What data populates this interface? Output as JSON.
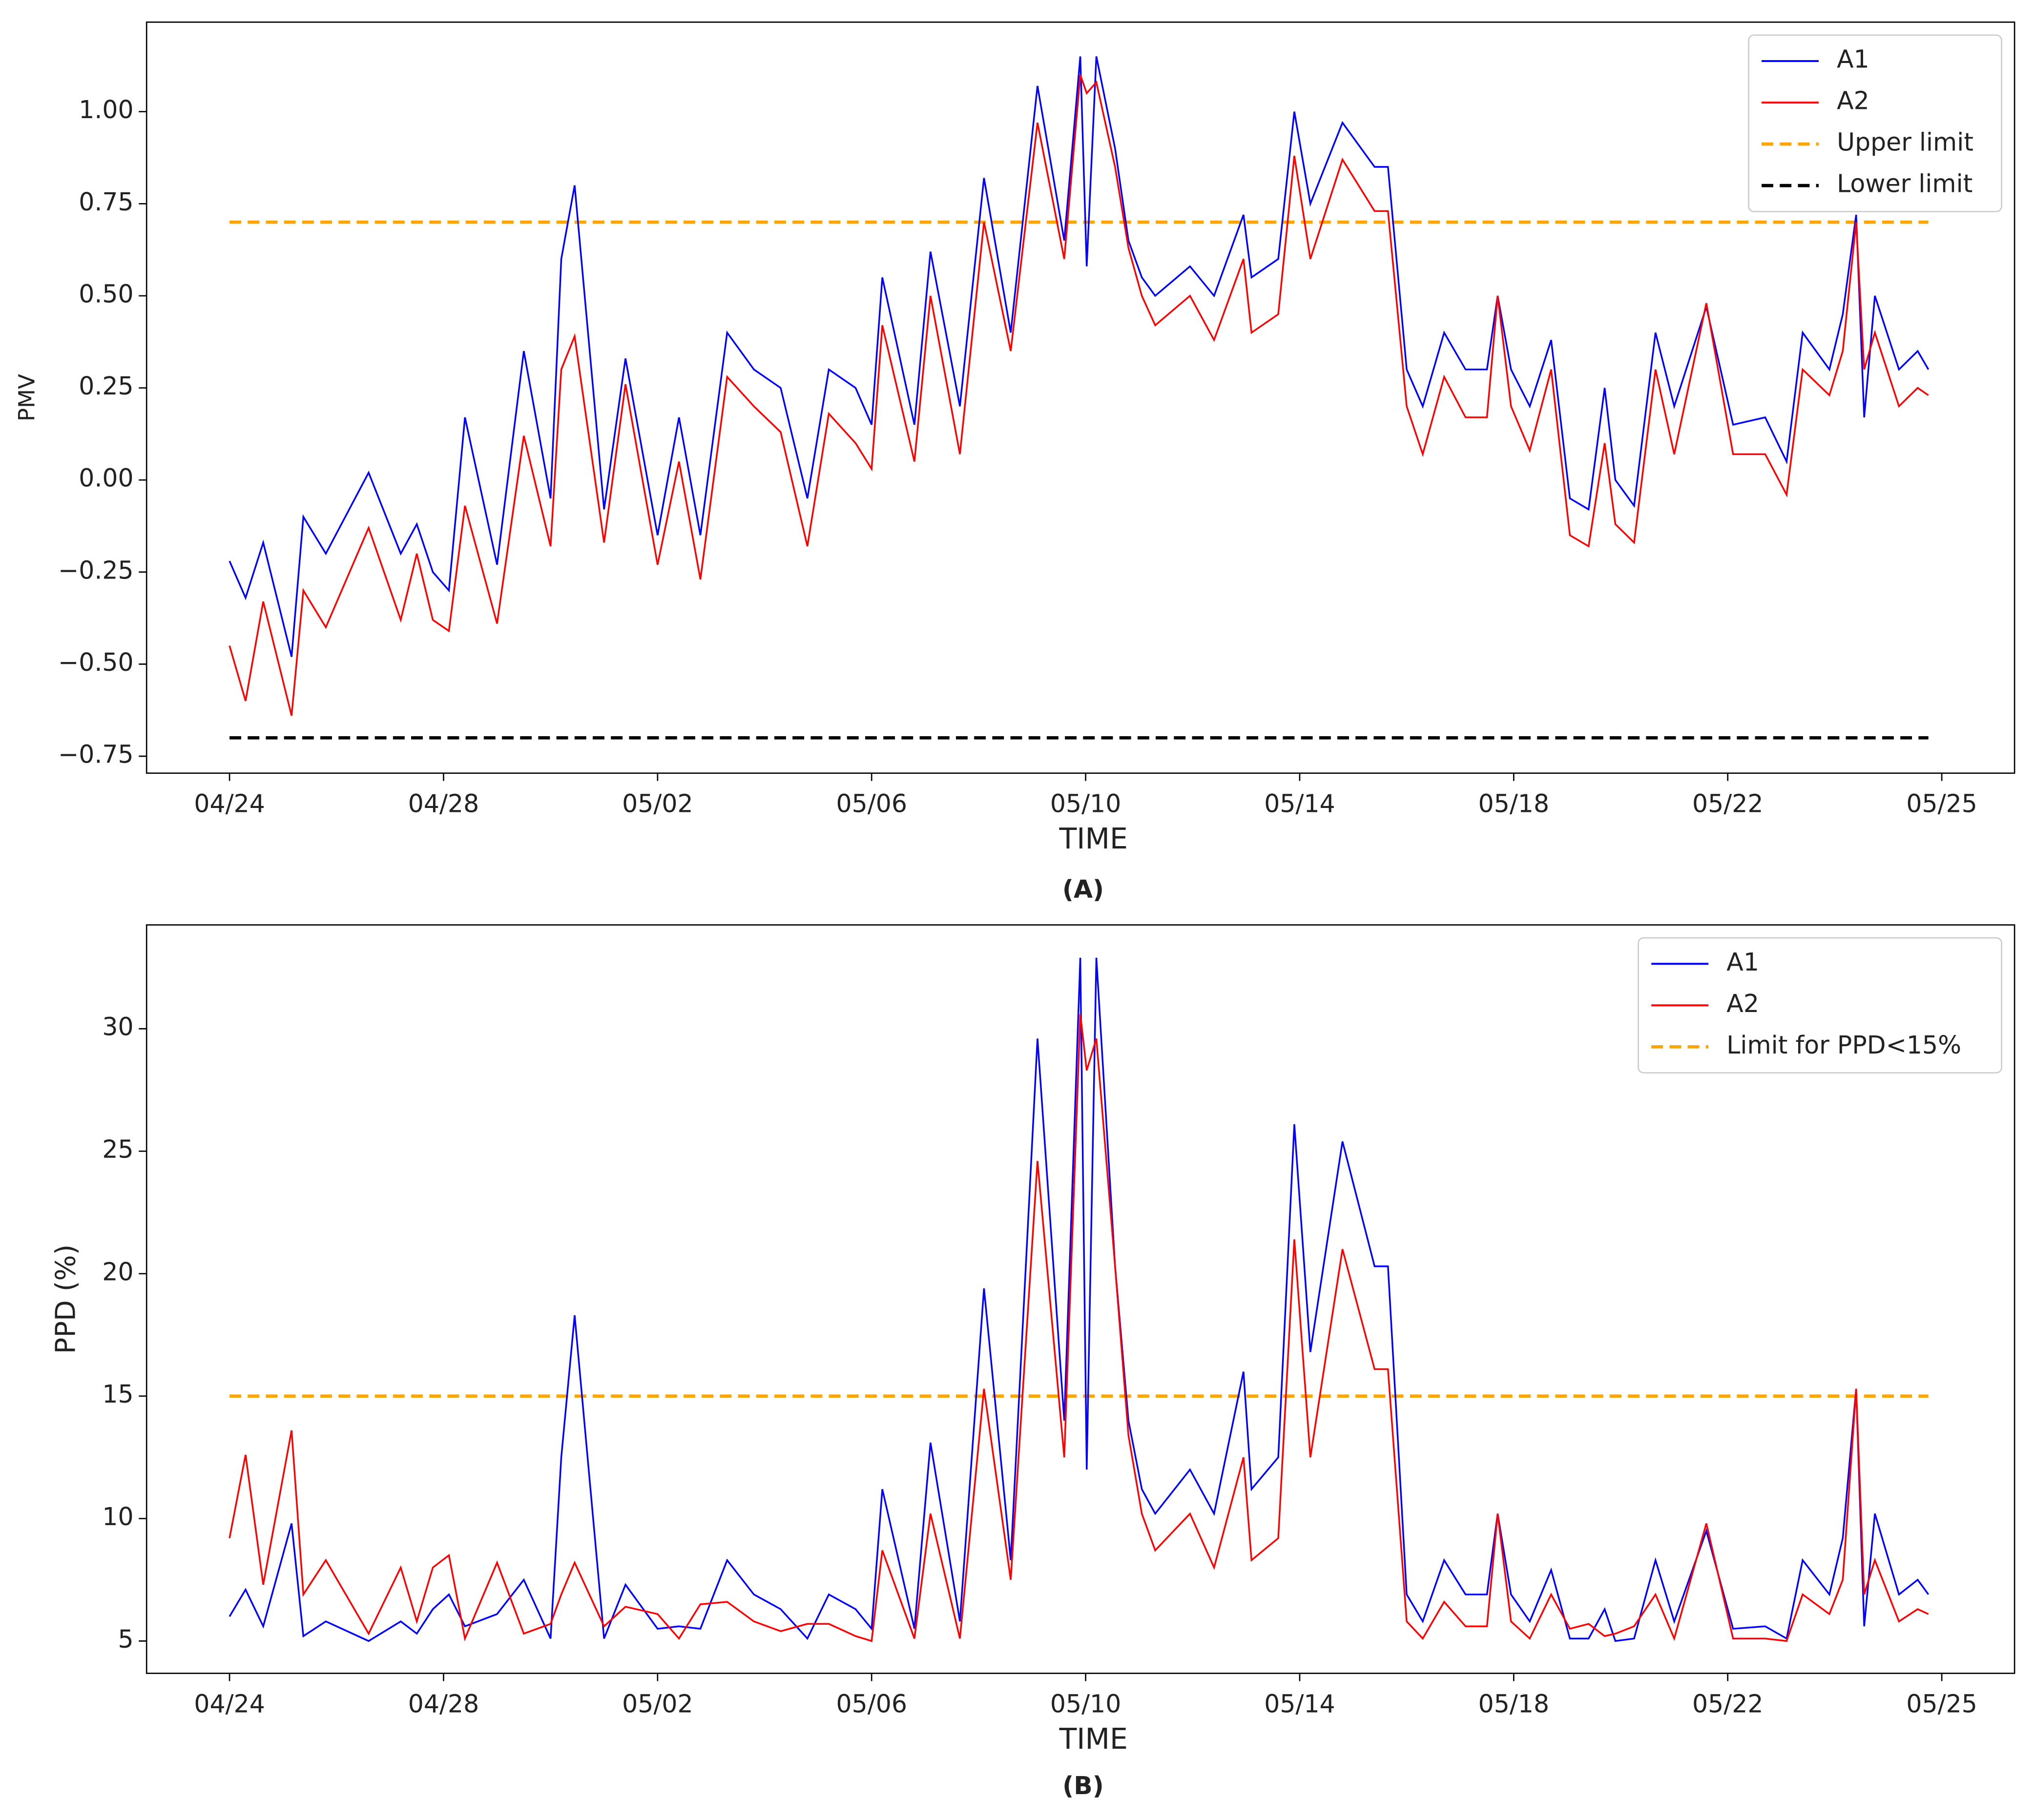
{
  "chart_data": [
    {
      "type": "line",
      "caption": "(A)",
      "xlabel": "TIME",
      "ylabel": "PMV",
      "x": [
        0,
        0.3,
        0.63,
        1.16,
        1.38,
        1.8,
        2.6,
        3.2,
        3.5,
        3.8,
        4.1,
        4.4,
        5.0,
        5.5,
        6.0,
        6.2,
        6.45,
        7.0,
        7.4,
        8.0,
        8.4,
        8.8,
        9.3,
        9.8,
        10.3,
        10.8,
        11.2,
        11.7,
        12.0,
        12.2,
        12.8,
        13.1,
        13.65,
        14.1,
        14.6,
        15.1,
        15.6,
        15.9,
        16.02,
        16.2,
        16.55,
        16.8,
        17.05,
        17.3,
        17.95,
        18.4,
        18.95,
        19.1,
        19.6,
        19.9,
        20.2,
        20.8,
        21.4,
        21.65,
        22.0,
        22.3,
        22.7,
        23.1,
        23.5,
        23.7,
        23.95,
        24.3,
        24.7,
        25.05,
        25.4,
        25.7,
        25.9,
        26.25,
        26.65,
        27.0,
        27.6,
        28.1,
        28.7,
        29.1,
        29.4,
        29.9,
        30.15,
        30.4,
        30.55,
        30.75,
        31.2,
        31.55,
        31.75
      ],
      "series": [
        {
          "name": "A1",
          "color": "#0000ff",
          "values": [
            -0.22,
            -0.32,
            -0.17,
            -0.48,
            -0.1,
            -0.2,
            0.02,
            -0.2,
            -0.12,
            -0.25,
            -0.3,
            0.17,
            -0.23,
            0.35,
            -0.05,
            0.6,
            0.8,
            -0.08,
            0.33,
            -0.15,
            0.17,
            -0.15,
            0.4,
            0.3,
            0.25,
            -0.05,
            0.3,
            0.25,
            0.15,
            0.55,
            0.15,
            0.62,
            0.2,
            0.82,
            0.4,
            1.07,
            0.65,
            1.15,
            0.58,
            1.15,
            0.9,
            0.65,
            0.55,
            0.5,
            0.58,
            0.5,
            0.72,
            0.55,
            0.6,
            1.0,
            0.75,
            0.97,
            0.85,
            0.85,
            0.3,
            0.2,
            0.4,
            0.3,
            0.3,
            0.5,
            0.3,
            0.2,
            0.38,
            -0.05,
            -0.08,
            0.25,
            0.0,
            -0.07,
            0.4,
            0.2,
            0.47,
            0.15,
            0.17,
            0.05,
            0.4,
            0.3,
            0.45,
            0.72,
            0.17,
            0.5,
            0.3,
            0.35,
            0.3
          ]
        },
        {
          "name": "A2",
          "color": "#ff0000",
          "values": [
            -0.45,
            -0.6,
            -0.33,
            -0.64,
            -0.3,
            -0.4,
            -0.13,
            -0.38,
            -0.2,
            -0.38,
            -0.41,
            -0.07,
            -0.39,
            0.12,
            -0.18,
            0.3,
            0.39,
            -0.17,
            0.26,
            -0.23,
            0.05,
            -0.27,
            0.28,
            0.2,
            0.13,
            -0.18,
            0.18,
            0.1,
            0.03,
            0.42,
            0.05,
            0.5,
            0.07,
            0.7,
            0.35,
            0.97,
            0.6,
            1.1,
            1.05,
            1.08,
            0.85,
            0.63,
            0.5,
            0.42,
            0.5,
            0.38,
            0.6,
            0.4,
            0.45,
            0.88,
            0.6,
            0.87,
            0.73,
            0.73,
            0.2,
            0.07,
            0.28,
            0.17,
            0.17,
            0.5,
            0.2,
            0.08,
            0.3,
            -0.15,
            -0.18,
            0.1,
            -0.12,
            -0.17,
            0.3,
            0.07,
            0.48,
            0.07,
            0.07,
            -0.04,
            0.3,
            0.23,
            0.35,
            0.7,
            0.3,
            0.4,
            0.2,
            0.25,
            0.23
          ]
        }
      ],
      "hlines": [
        {
          "name": "Upper limit",
          "color": "#ffa500",
          "value": 0.7
        },
        {
          "name": "Lower limit",
          "color": "#000000",
          "value": -0.7
        }
      ],
      "xlim": [
        -1.55,
        33.36
      ],
      "xticks": [
        {
          "value": 0,
          "label": "04/24"
        },
        {
          "value": 4,
          "label": "04/28"
        },
        {
          "value": 8,
          "label": "05/02"
        },
        {
          "value": 12,
          "label": "05/06"
        },
        {
          "value": 16,
          "label": "05/10"
        },
        {
          "value": 20,
          "label": "05/14"
        },
        {
          "value": 24,
          "label": "05/18"
        },
        {
          "value": 28,
          "label": "05/22"
        },
        {
          "value": 32,
          "label": "05/25"
        }
      ],
      "ylim": [
        -0.796,
        1.243
      ],
      "yticks": [
        {
          "value": -0.75,
          "label": "−0.75"
        },
        {
          "value": -0.5,
          "label": "−0.50"
        },
        {
          "value": -0.25,
          "label": "−0.25"
        },
        {
          "value": 0,
          "label": "0.00"
        },
        {
          "value": 0.25,
          "label": "0.25"
        },
        {
          "value": 0.5,
          "label": "0.50"
        },
        {
          "value": 0.75,
          "label": "0.75"
        },
        {
          "value": 1,
          "label": "1.00"
        }
      ],
      "legend": "upper right",
      "grid": false
    },
    {
      "type": "line",
      "caption": "(B)",
      "xlabel": "TIME",
      "ylabel": "PPD (%)",
      "x": [
        0,
        0.3,
        0.63,
        1.16,
        1.38,
        1.8,
        2.6,
        3.2,
        3.5,
        3.8,
        4.1,
        4.4,
        5.0,
        5.5,
        6.0,
        6.2,
        6.45,
        7.0,
        7.4,
        8.0,
        8.4,
        8.8,
        9.3,
        9.8,
        10.3,
        10.8,
        11.2,
        11.7,
        12.0,
        12.2,
        12.8,
        13.1,
        13.65,
        14.1,
        14.6,
        15.1,
        15.6,
        15.9,
        16.02,
        16.2,
        16.55,
        16.8,
        17.05,
        17.3,
        17.95,
        18.4,
        18.95,
        19.1,
        19.6,
        19.9,
        20.2,
        20.8,
        21.4,
        21.65,
        22.0,
        22.3,
        22.7,
        23.1,
        23.5,
        23.7,
        23.95,
        24.3,
        24.7,
        25.05,
        25.4,
        25.7,
        25.9,
        26.25,
        26.65,
        27.0,
        27.6,
        28.1,
        28.7,
        29.1,
        29.4,
        29.9,
        30.15,
        30.4,
        30.55,
        30.75,
        31.2,
        31.55,
        31.75
      ],
      "series": [
        {
          "name": "A1",
          "color": "#0000ff",
          "values": [
            6.0,
            7.1,
            5.6,
            9.8,
            5.2,
            5.8,
            5.0,
            5.8,
            5.3,
            6.3,
            6.9,
            5.6,
            6.1,
            7.5,
            5.1,
            12.5,
            18.3,
            5.1,
            7.3,
            5.5,
            5.6,
            5.5,
            8.3,
            6.9,
            6.3,
            5.1,
            6.9,
            6.3,
            5.5,
            11.2,
            5.5,
            13.1,
            5.8,
            19.4,
            8.3,
            29.6,
            14.0,
            32.9,
            12.0,
            32.9,
            20.3,
            14.0,
            11.2,
            10.2,
            12.0,
            10.2,
            16.0,
            11.2,
            12.5,
            26.1,
            16.8,
            25.4,
            20.3,
            20.3,
            6.9,
            5.8,
            8.3,
            6.9,
            6.9,
            10.2,
            6.9,
            5.8,
            7.9,
            5.1,
            5.1,
            6.3,
            5.0,
            5.1,
            8.3,
            5.8,
            9.5,
            5.5,
            5.6,
            5.1,
            8.3,
            6.9,
            9.2,
            15.3,
            5.6,
            10.2,
            6.9,
            7.5,
            6.9
          ]
        },
        {
          "name": "A2",
          "color": "#ff0000",
          "values": [
            9.2,
            12.6,
            7.3,
            13.6,
            6.9,
            8.3,
            5.3,
            8.0,
            5.8,
            8.0,
            8.5,
            5.1,
            8.2,
            5.3,
            5.7,
            6.9,
            8.2,
            5.6,
            6.4,
            6.1,
            5.1,
            6.5,
            6.6,
            5.8,
            5.4,
            5.7,
            5.7,
            5.2,
            5.0,
            8.7,
            5.1,
            10.2,
            5.1,
            15.3,
            7.5,
            24.6,
            12.5,
            30.6,
            28.3,
            29.6,
            20.3,
            13.4,
            10.2,
            8.7,
            10.2,
            8.0,
            12.5,
            8.3,
            9.2,
            21.4,
            12.5,
            21.0,
            16.1,
            16.1,
            5.8,
            5.1,
            6.6,
            5.6,
            5.6,
            10.2,
            5.8,
            5.1,
            6.9,
            5.5,
            5.7,
            5.2,
            5.3,
            5.6,
            6.9,
            5.1,
            9.8,
            5.1,
            5.1,
            5.0,
            6.9,
            6.1,
            7.5,
            15.3,
            6.9,
            8.3,
            5.8,
            6.3,
            6.1
          ]
        }
      ],
      "hlines": [
        {
          "name": "Limit for PPD<15%",
          "color": "#ffa500",
          "value": 15
        }
      ],
      "xlim": [
        -1.55,
        33.36
      ],
      "xticks": [
        {
          "value": 0,
          "label": "04/24"
        },
        {
          "value": 4,
          "label": "04/28"
        },
        {
          "value": 8,
          "label": "05/02"
        },
        {
          "value": 12,
          "label": "05/06"
        },
        {
          "value": 16,
          "label": "05/10"
        },
        {
          "value": 20,
          "label": "05/14"
        },
        {
          "value": 24,
          "label": "05/18"
        },
        {
          "value": 28,
          "label": "05/22"
        },
        {
          "value": 32,
          "label": "05/25"
        }
      ],
      "ylim": [
        3.68,
        34.24
      ],
      "yticks": [
        5,
        10,
        15,
        20,
        25,
        30
      ],
      "legend": "upper right",
      "grid": false
    }
  ]
}
